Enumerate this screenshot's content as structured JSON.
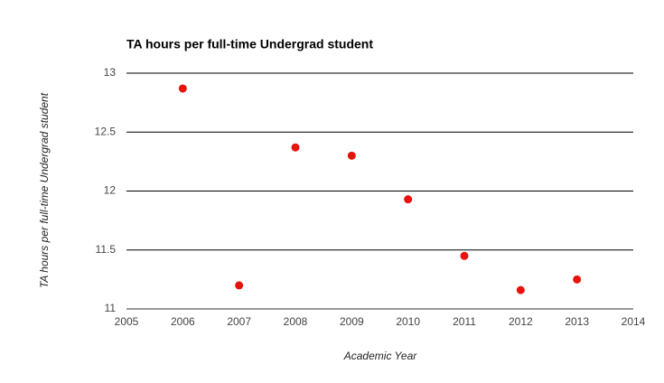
{
  "chart_data": {
    "type": "scatter",
    "title": "TA hours per full-time Undergrad student",
    "x_label": "Academic Year",
    "y_label": "TA hours per full-time Undergrad student",
    "x": [
      2006,
      2007,
      2008,
      2009,
      2010,
      2011,
      2012,
      2013
    ],
    "values": [
      12.87,
      11.2,
      12.37,
      12.3,
      11.93,
      11.45,
      11.16,
      11.25
    ],
    "color": "#e8120c",
    "xlim": [
      2005,
      2014
    ],
    "xticks": [
      2005,
      2006,
      2007,
      2008,
      2009,
      2010,
      2011,
      2012,
      2013,
      2014
    ],
    "ylim": [
      11,
      13
    ],
    "yticks": [
      11,
      11.5,
      12,
      12.5,
      13
    ],
    "grid": true
  }
}
